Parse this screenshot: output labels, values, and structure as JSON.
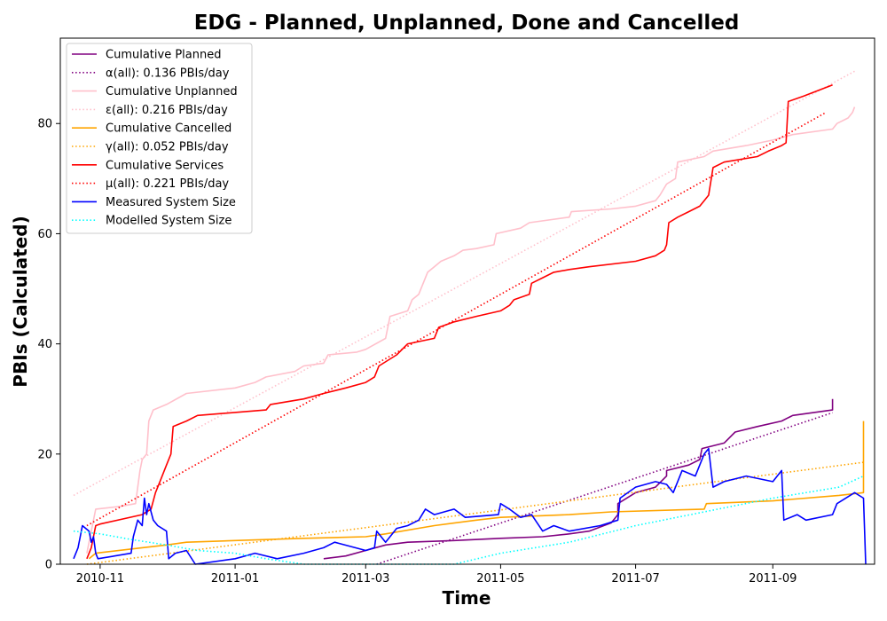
{
  "chart_data": {
    "type": "line",
    "title": "EDG - Planned, Unplanned, Done  and Cancelled",
    "xlabel": "Time",
    "ylabel": "PBIs (Calculated)",
    "xlim": [
      "2010-10-14",
      "2011-10-17"
    ],
    "ylim": [
      0,
      95.5
    ],
    "x_ticks": [
      {
        "date": "2010-11-01",
        "label": "2010-11"
      },
      {
        "date": "2011-01-01",
        "label": "2011-01"
      },
      {
        "date": "2011-03-01",
        "label": "2011-03"
      },
      {
        "date": "2011-05-01",
        "label": "2011-05"
      },
      {
        "date": "2011-07-01",
        "label": "2011-07"
      },
      {
        "date": "2011-09-01",
        "label": "2011-09"
      }
    ],
    "y_ticks": [
      0,
      20,
      40,
      60,
      80
    ],
    "grid": false,
    "legend_position": "top-left",
    "series": [
      {
        "name": "Cumulative Planned",
        "color": "#800080",
        "style": "solid",
        "points": [
          [
            "2011-02-10",
            1
          ],
          [
            "2011-02-20",
            1.5
          ],
          [
            "2011-03-01",
            2.5
          ],
          [
            "2011-03-10",
            3.5
          ],
          [
            "2011-03-20",
            4
          ],
          [
            "2011-04-10",
            4.3
          ],
          [
            "2011-05-01",
            4.7
          ],
          [
            "2011-05-20",
            5
          ],
          [
            "2011-06-01",
            5.5
          ],
          [
            "2011-06-10",
            6
          ],
          [
            "2011-06-20",
            7.5
          ],
          [
            "2011-06-23",
            9
          ],
          [
            "2011-06-23",
            11
          ],
          [
            "2011-07-01",
            13
          ],
          [
            "2011-07-10",
            14
          ],
          [
            "2011-07-15",
            16
          ],
          [
            "2011-07-15",
            17
          ],
          [
            "2011-07-25",
            18
          ],
          [
            "2011-07-30",
            19
          ],
          [
            "2011-07-31",
            21
          ],
          [
            "2011-08-10",
            22
          ],
          [
            "2011-08-15",
            24
          ],
          [
            "2011-08-25",
            25
          ],
          [
            "2011-09-05",
            26
          ],
          [
            "2011-09-10",
            27
          ],
          [
            "2011-09-28",
            28
          ],
          [
            "2011-09-28",
            30
          ]
        ]
      },
      {
        "name": "α(all): 0.136 PBIs/day",
        "color": "#800080",
        "style": "dotted",
        "points": [
          [
            "2011-03-06",
            0
          ],
          [
            "2011-09-28",
            27.5
          ]
        ]
      },
      {
        "name": "Cumulative Unplanned",
        "color": "#ffc0cb",
        "style": "solid",
        "points": [
          [
            "2010-10-26",
            2
          ],
          [
            "2010-10-28",
            6
          ],
          [
            "2010-10-30",
            10
          ],
          [
            "2010-11-10",
            10.5
          ],
          [
            "2010-11-17",
            11
          ],
          [
            "2010-11-19",
            17
          ],
          [
            "2010-11-20",
            19
          ],
          [
            "2010-11-22",
            20
          ],
          [
            "2010-11-23",
            26
          ],
          [
            "2010-11-25",
            28
          ],
          [
            "2010-12-01",
            29
          ],
          [
            "2010-12-10",
            31
          ],
          [
            "2011-01-01",
            32
          ],
          [
            "2011-01-10",
            33
          ],
          [
            "2011-01-15",
            34
          ],
          [
            "2011-01-28",
            35
          ],
          [
            "2011-02-01",
            36
          ],
          [
            "2011-02-10",
            36.5
          ],
          [
            "2011-02-12",
            38
          ],
          [
            "2011-02-25",
            38.5
          ],
          [
            "2011-03-01",
            39
          ],
          [
            "2011-03-10",
            41
          ],
          [
            "2011-03-12",
            45
          ],
          [
            "2011-03-20",
            46
          ],
          [
            "2011-03-22",
            48
          ],
          [
            "2011-03-25",
            49
          ],
          [
            "2011-03-29",
            53
          ],
          [
            "2011-04-01",
            54
          ],
          [
            "2011-04-04",
            55
          ],
          [
            "2011-04-10",
            56
          ],
          [
            "2011-04-14",
            57
          ],
          [
            "2011-04-20",
            57.3
          ],
          [
            "2011-04-28",
            58
          ],
          [
            "2011-04-29",
            60
          ],
          [
            "2011-05-10",
            61
          ],
          [
            "2011-05-14",
            62
          ],
          [
            "2011-06-01",
            63
          ],
          [
            "2011-06-02",
            64
          ],
          [
            "2011-06-20",
            64.5
          ],
          [
            "2011-07-01",
            65
          ],
          [
            "2011-07-10",
            66
          ],
          [
            "2011-07-12",
            67
          ],
          [
            "2011-07-15",
            69
          ],
          [
            "2011-07-19",
            70
          ],
          [
            "2011-07-20",
            73
          ],
          [
            "2011-08-01",
            74
          ],
          [
            "2011-08-05",
            75
          ],
          [
            "2011-08-20",
            76
          ],
          [
            "2011-09-01",
            77
          ],
          [
            "2011-09-10",
            78
          ],
          [
            "2011-09-28",
            79
          ],
          [
            "2011-09-30",
            80
          ],
          [
            "2011-10-05",
            81
          ],
          [
            "2011-10-07",
            82
          ],
          [
            "2011-10-08",
            83
          ]
        ]
      },
      {
        "name": "ε(all): 0.216 PBIs/day",
        "color": "#ffc0cb",
        "style": "dotted",
        "points": [
          [
            "2010-10-20",
            12.5
          ],
          [
            "2011-10-08",
            89.5
          ]
        ]
      },
      {
        "name": "Cumulative Cancelled",
        "color": "#ffa500",
        "style": "solid",
        "points": [
          [
            "2010-10-27",
            1
          ],
          [
            "2010-10-30",
            2
          ],
          [
            "2010-11-20",
            3
          ],
          [
            "2010-12-01",
            3.5
          ],
          [
            "2010-12-10",
            4
          ],
          [
            "2011-01-01",
            4.3
          ],
          [
            "2011-02-01",
            4.7
          ],
          [
            "2011-03-01",
            5
          ],
          [
            "2011-03-10",
            5.5
          ],
          [
            "2011-04-01",
            7
          ],
          [
            "2011-04-20",
            8
          ],
          [
            "2011-05-01",
            8.5
          ],
          [
            "2011-06-01",
            9
          ],
          [
            "2011-06-20",
            9.5
          ],
          [
            "2011-08-01",
            10
          ],
          [
            "2011-08-02",
            11
          ],
          [
            "2011-09-01",
            11.5
          ],
          [
            "2011-10-01",
            12.5
          ],
          [
            "2011-10-12",
            13
          ],
          [
            "2011-10-12",
            26
          ]
        ]
      },
      {
        "name": "γ(all): 0.052 PBIs/day",
        "color": "#ffa500",
        "style": "dotted",
        "points": [
          [
            "2010-10-26",
            0
          ],
          [
            "2011-10-12",
            18.5
          ]
        ]
      },
      {
        "name": "Cumulative Services",
        "color": "#ff0000",
        "style": "solid",
        "points": [
          [
            "2010-10-26",
            1
          ],
          [
            "2010-10-28",
            3
          ],
          [
            "2010-10-30",
            7
          ],
          [
            "2010-11-01",
            7.3
          ],
          [
            "2010-11-20",
            9
          ],
          [
            "2010-11-24",
            10
          ],
          [
            "2010-11-26",
            13
          ],
          [
            "2010-11-28",
            15
          ],
          [
            "2010-12-01",
            18
          ],
          [
            "2010-12-03",
            20
          ],
          [
            "2010-12-04",
            25
          ],
          [
            "2010-12-10",
            26
          ],
          [
            "2010-12-15",
            27
          ],
          [
            "2011-01-15",
            28
          ],
          [
            "2011-01-17",
            29
          ],
          [
            "2011-02-01",
            30
          ],
          [
            "2011-02-10",
            31
          ],
          [
            "2011-02-20",
            32
          ],
          [
            "2011-03-01",
            33
          ],
          [
            "2011-03-05",
            34
          ],
          [
            "2011-03-07",
            36
          ],
          [
            "2011-03-15",
            38
          ],
          [
            "2011-03-20",
            40
          ],
          [
            "2011-04-01",
            41
          ],
          [
            "2011-04-03",
            43
          ],
          [
            "2011-04-10",
            44
          ],
          [
            "2011-04-20",
            45
          ],
          [
            "2011-05-01",
            46
          ],
          [
            "2011-05-05",
            47
          ],
          [
            "2011-05-07",
            48
          ],
          [
            "2011-05-14",
            49
          ],
          [
            "2011-05-15",
            51
          ],
          [
            "2011-05-20",
            52
          ],
          [
            "2011-05-25",
            53
          ],
          [
            "2011-06-01",
            53.5
          ],
          [
            "2011-06-10",
            54
          ],
          [
            "2011-07-01",
            55
          ],
          [
            "2011-07-10",
            56
          ],
          [
            "2011-07-14",
            57
          ],
          [
            "2011-07-15",
            58
          ],
          [
            "2011-07-16",
            62
          ],
          [
            "2011-07-20",
            63
          ],
          [
            "2011-07-25",
            64
          ],
          [
            "2011-07-30",
            65
          ],
          [
            "2011-08-01",
            66
          ],
          [
            "2011-08-03",
            67
          ],
          [
            "2011-08-05",
            72
          ],
          [
            "2011-08-10",
            73
          ],
          [
            "2011-08-25",
            74
          ],
          [
            "2011-08-30",
            75
          ],
          [
            "2011-09-05",
            76
          ],
          [
            "2011-09-07",
            76.5
          ],
          [
            "2011-09-08",
            84
          ],
          [
            "2011-09-15",
            85
          ],
          [
            "2011-09-28",
            87
          ]
        ]
      },
      {
        "name": "μ(all): 0.221 PBIs/day",
        "color": "#ff0000",
        "style": "dotted",
        "points": [
          [
            "2010-10-26",
            7
          ],
          [
            "2011-09-25",
            82
          ]
        ]
      },
      {
        "name": "Measured System Size",
        "color": "#0000ff",
        "style": "solid",
        "points": [
          [
            "2010-10-20",
            1
          ],
          [
            "2010-10-22",
            3
          ],
          [
            "2010-10-24",
            7
          ],
          [
            "2010-10-27",
            6
          ],
          [
            "2010-10-28",
            4
          ],
          [
            "2010-10-29",
            5
          ],
          [
            "2010-10-30",
            2
          ],
          [
            "2010-10-31",
            1
          ],
          [
            "2010-11-15",
            2
          ],
          [
            "2010-11-16",
            5
          ],
          [
            "2010-11-18",
            8
          ],
          [
            "2010-11-20",
            7
          ],
          [
            "2010-11-21",
            12
          ],
          [
            "2010-11-22",
            9
          ],
          [
            "2010-11-23",
            11
          ],
          [
            "2010-11-25",
            8
          ],
          [
            "2010-11-27",
            7
          ],
          [
            "2010-12-01",
            6
          ],
          [
            "2010-12-02",
            1
          ],
          [
            "2010-12-05",
            2
          ],
          [
            "2010-12-10",
            2.5
          ],
          [
            "2010-12-14",
            0
          ],
          [
            "2011-01-01",
            1
          ],
          [
            "2011-01-10",
            2
          ],
          [
            "2011-01-20",
            1
          ],
          [
            "2011-02-01",
            2
          ],
          [
            "2011-02-10",
            3
          ],
          [
            "2011-02-15",
            4
          ],
          [
            "2011-03-01",
            2.5
          ],
          [
            "2011-03-05",
            3
          ],
          [
            "2011-03-06",
            6
          ],
          [
            "2011-03-10",
            4
          ],
          [
            "2011-03-12",
            5
          ],
          [
            "2011-03-15",
            6.5
          ],
          [
            "2011-03-20",
            7
          ],
          [
            "2011-03-25",
            8
          ],
          [
            "2011-03-28",
            10
          ],
          [
            "2011-04-01",
            9
          ],
          [
            "2011-04-10",
            10
          ],
          [
            "2011-04-15",
            8.5
          ],
          [
            "2011-04-30",
            9
          ],
          [
            "2011-05-01",
            11
          ],
          [
            "2011-05-05",
            10
          ],
          [
            "2011-05-10",
            8.5
          ],
          [
            "2011-05-15",
            9
          ],
          [
            "2011-05-20",
            6
          ],
          [
            "2011-05-25",
            7
          ],
          [
            "2011-06-01",
            6
          ],
          [
            "2011-06-15",
            7
          ],
          [
            "2011-06-23",
            8
          ],
          [
            "2011-06-24",
            12
          ],
          [
            "2011-07-01",
            14
          ],
          [
            "2011-07-10",
            15
          ],
          [
            "2011-07-15",
            14.5
          ],
          [
            "2011-07-18",
            13
          ],
          [
            "2011-07-20",
            15
          ],
          [
            "2011-07-22",
            17
          ],
          [
            "2011-07-28",
            16
          ],
          [
            "2011-08-01",
            20
          ],
          [
            "2011-08-03",
            21
          ],
          [
            "2011-08-05",
            14
          ],
          [
            "2011-08-10",
            15
          ],
          [
            "2011-08-20",
            16
          ],
          [
            "2011-09-01",
            15
          ],
          [
            "2011-09-05",
            17
          ],
          [
            "2011-09-06",
            8
          ],
          [
            "2011-09-12",
            9
          ],
          [
            "2011-09-16",
            8
          ],
          [
            "2011-09-28",
            9
          ],
          [
            "2011-09-30",
            11
          ],
          [
            "2011-10-08",
            13
          ],
          [
            "2011-10-12",
            12
          ],
          [
            "2011-10-13",
            0
          ]
        ]
      },
      {
        "name": "Modelled System Size",
        "color": "#00ffff",
        "style": "dotted",
        "points": [
          [
            "2010-10-20",
            6
          ],
          [
            "2010-11-01",
            5.5
          ],
          [
            "2010-11-15",
            4.5
          ],
          [
            "2010-12-01",
            3.5
          ],
          [
            "2010-12-15",
            2.5
          ],
          [
            "2011-01-01",
            2
          ],
          [
            "2011-01-15",
            1
          ],
          [
            "2011-02-01",
            0
          ],
          [
            "2011-03-01",
            0
          ],
          [
            "2011-04-10",
            0
          ],
          [
            "2011-05-01",
            2
          ],
          [
            "2011-06-01",
            4
          ],
          [
            "2011-07-01",
            7
          ],
          [
            "2011-08-01",
            9.5
          ],
          [
            "2011-09-01",
            12
          ],
          [
            "2011-10-01",
            14
          ],
          [
            "2011-10-12",
            16
          ]
        ]
      }
    ]
  }
}
